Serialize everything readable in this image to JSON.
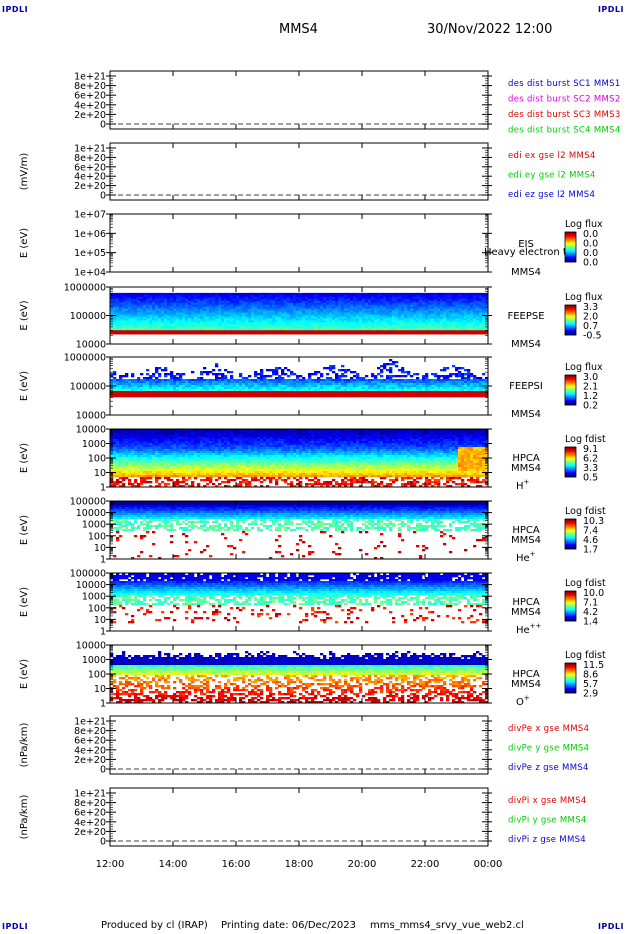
{
  "corners": {
    "tl": "IPDLI",
    "tr": "IPDLI",
    "bl": "IPDLI",
    "br": "IPDLI"
  },
  "header": {
    "spacecraft": "MMS4",
    "datetime": "30/Nov/2022 12:00"
  },
  "footer": {
    "produced": "Produced by cl (IRAP)",
    "printing": "Printing date: 06/Dec/2023",
    "file": "mms_mms4_srvy_vue_web2.cl"
  },
  "colors": {
    "mms1": "#0000cc",
    "mms2": "#dd00dd",
    "mms3": "#dd0000",
    "mms4": "#00cc00",
    "red": "#dd0000",
    "green": "#00cc00",
    "blue": "#0000cc"
  },
  "chart_data": {
    "type": "heatmap",
    "xlabels": [
      "12:00",
      "14:00",
      "16:00",
      "18:00",
      "20:00",
      "22:00",
      "00:00"
    ],
    "panels": [
      {
        "type": "line",
        "ylabel": "",
        "ticks": [
          "1e+21",
          "8e+20",
          "6e+20",
          "4e+20",
          "2e+20",
          "0"
        ],
        "legend": [
          {
            "text": "des dist burst SC1 MMS1",
            "color": "#0000cc"
          },
          {
            "text": "des dist burst SC2 MMS2",
            "color": "#dd00dd"
          },
          {
            "text": "des dist burst SC3 MMS3",
            "color": "#dd0000"
          },
          {
            "text": "des dist burst SC4 MMS4",
            "color": "#00cc00"
          }
        ]
      },
      {
        "type": "line",
        "ylabel": "(mV/m)",
        "ticks": [
          "1e+21",
          "8e+20",
          "6e+20",
          "4e+20",
          "2e+20",
          "0"
        ],
        "legend": [
          {
            "text": "edi ex gse l2 MMS4",
            "color": "#dd0000"
          },
          {
            "text": "edi ey gse l2 MMS4",
            "color": "#00cc00"
          },
          {
            "text": "edi ez gse l2 MMS4",
            "color": "#0000cc"
          }
        ]
      },
      {
        "type": "spectrogram",
        "ylabel": "E (eV)",
        "ticks": [
          "1e+07",
          "1e+06",
          "1e+05",
          "1e+04"
        ],
        "instrument": [
          "EIS",
          "MMS4"
        ],
        "extra": "Heavy electron to",
        "cb_title": "Log flux",
        "cb_labels": [
          "0.0",
          "0.0",
          "0.0",
          "0.0"
        ],
        "empty": true
      },
      {
        "type": "spectrogram",
        "ylabel": "E (eV)",
        "ticks": [
          "1000000",
          "100000",
          "10000"
        ],
        "instrument": [
          "FEEPSE",
          "MMS4"
        ],
        "cb_title": "Log flux",
        "cb_labels": [
          "3.3",
          "2.0",
          "0.7",
          "-0.5"
        ],
        "variant": "feepse"
      },
      {
        "type": "spectrogram",
        "ylabel": "E (eV)",
        "ticks": [
          "1000000",
          "100000",
          "10000"
        ],
        "instrument": [
          "FEEPSI",
          "MMS4"
        ],
        "cb_title": "Log flux",
        "cb_labels": [
          "3.0",
          "2.1",
          "1.2",
          "0.2"
        ],
        "variant": "feepsi"
      },
      {
        "type": "spectrogram",
        "ylabel": "E (eV)",
        "ticks": [
          "10000",
          "1000",
          "100",
          "10",
          "1"
        ],
        "instrument": [
          "HPCA",
          "MMS4"
        ],
        "species": "H",
        "species_sup": "+",
        "cb_title": "Log fdist",
        "cb_labels": [
          "9.1",
          "6.2",
          "3.3",
          "0.5"
        ],
        "variant": "h"
      },
      {
        "type": "spectrogram",
        "ylabel": "E (eV)",
        "ticks": [
          "100000",
          "10000",
          "1000",
          "100",
          "10",
          "1"
        ],
        "instrument": [
          "HPCA",
          "MMS4"
        ],
        "species": "He",
        "species_sup": "+",
        "cb_title": "Log fdist",
        "cb_labels": [
          "10.3",
          "7.4",
          "4.6",
          "1.7"
        ],
        "variant": "he"
      },
      {
        "type": "spectrogram",
        "ylabel": "E (eV)",
        "ticks": [
          "100000",
          "10000",
          "1000",
          "100",
          "10",
          "1"
        ],
        "instrument": [
          "HPCA",
          "MMS4"
        ],
        "species": "He",
        "species_sup": "++",
        "cb_title": "Log fdist",
        "cb_labels": [
          "10.0",
          "7.1",
          "4.2",
          "1.4"
        ],
        "variant": "hepp"
      },
      {
        "type": "spectrogram",
        "ylabel": "E (eV)",
        "ticks": [
          "10000",
          "1000",
          "100",
          "10",
          "1"
        ],
        "instrument": [
          "HPCA",
          "MMS4"
        ],
        "species": "O",
        "species_sup": "+",
        "cb_title": "Log fdist",
        "cb_labels": [
          "11.5",
          "8.6",
          "5.7",
          "2.9"
        ],
        "variant": "o"
      },
      {
        "type": "line",
        "ylabel": "(nPa/km)",
        "ticks": [
          "1e+21",
          "8e+20",
          "6e+20",
          "4e+20",
          "2e+20",
          "0"
        ],
        "legend": [
          {
            "text": "divPe x gse MMS4",
            "color": "#dd0000"
          },
          {
            "text": "divPe y gse MMS4",
            "color": "#00cc00"
          },
          {
            "text": "divPe z gse MMS4",
            "color": "#0000cc"
          }
        ]
      },
      {
        "type": "line",
        "ylabel": "(nPa/km)",
        "ticks": [
          "1e+21",
          "8e+20",
          "6e+20",
          "4e+20",
          "2e+20",
          "0"
        ],
        "legend": [
          {
            "text": "divPi x gse MMS4",
            "color": "#dd0000"
          },
          {
            "text": "divPi y gse MMS4",
            "color": "#00cc00"
          },
          {
            "text": "divPi z gse MMS4",
            "color": "#0000cc"
          }
        ]
      }
    ]
  }
}
